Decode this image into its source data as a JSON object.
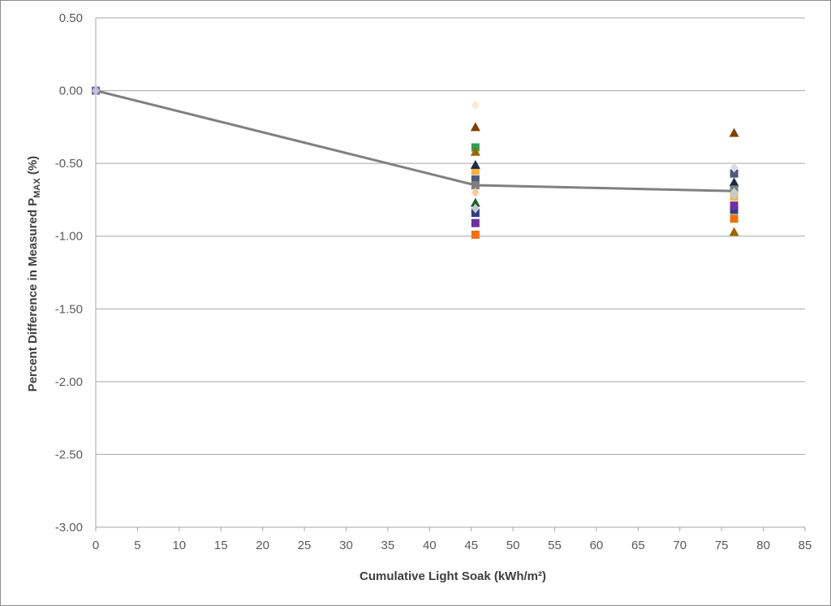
{
  "chart_data": {
    "type": "scatter",
    "xlabel": "Cumulative Light Soak (kWh/m²)",
    "ylabel": {
      "main": "Percent Difference in Measured P",
      "sub": "MAX",
      "suffix": " (%)"
    },
    "xlim": [
      0,
      85
    ],
    "ylim": [
      -3.0,
      0.5
    ],
    "x_ticks": [
      "0",
      "5",
      "10",
      "15",
      "20",
      "25",
      "30",
      "35",
      "40",
      "45",
      "50",
      "55",
      "60",
      "65",
      "70",
      "75",
      "80",
      "85"
    ],
    "y_ticks": [
      "0.50",
      "0.00",
      "-0.50",
      "-1.00",
      "-1.50",
      "-2.00",
      "-2.50",
      "-3.00"
    ],
    "grid": "horizontal",
    "legend": "none",
    "line_color": "#808080",
    "average_line": [
      {
        "x": 0,
        "y": 0
      },
      {
        "x": 45.5,
        "y": -0.65
      },
      {
        "x": 76.5,
        "y": -0.69
      }
    ],
    "points": [
      {
        "x": 0,
        "y": 0,
        "shape": "square",
        "color": "#8064a2"
      },
      {
        "x": 0,
        "y": 0,
        "shape": "diamond",
        "color": "#c0c0d8"
      },
      {
        "x": 45.5,
        "y": -0.1,
        "shape": "diamond",
        "color": "#fde9d0"
      },
      {
        "x": 45.5,
        "y": -0.25,
        "shape": "triangle",
        "color": "#7f3f00"
      },
      {
        "x": 45.5,
        "y": -0.39,
        "shape": "square",
        "color": "#2e9e4e"
      },
      {
        "x": 45.5,
        "y": -0.42,
        "shape": "triangle",
        "color": "#9c6500"
      },
      {
        "x": 45.5,
        "y": -0.55,
        "shape": "square",
        "color": "#f6b142"
      },
      {
        "x": 45.5,
        "y": -0.51,
        "shape": "triangle",
        "color": "#1f2a44"
      },
      {
        "x": 45.5,
        "y": -0.61,
        "shape": "square",
        "color": "#4f5b7a"
      },
      {
        "x": 45.5,
        "y": -0.65,
        "shape": "square",
        "color": "#7f7f7f"
      },
      {
        "x": 45.5,
        "y": -0.7,
        "shape": "diamond",
        "color": "#fbc99e"
      },
      {
        "x": 45.5,
        "y": -0.77,
        "shape": "triangle",
        "color": "#1e5c2e"
      },
      {
        "x": 45.5,
        "y": -0.84,
        "shape": "square",
        "color": "#2f3f86"
      },
      {
        "x": 45.5,
        "y": -0.81,
        "shape": "diamond",
        "color": "#c8c8c8"
      },
      {
        "x": 45.5,
        "y": -0.91,
        "shape": "square",
        "color": "#7030a0"
      },
      {
        "x": 45.5,
        "y": -0.99,
        "shape": "square",
        "color": "#f07010"
      },
      {
        "x": 76.5,
        "y": -0.29,
        "shape": "triangle",
        "color": "#7f3f00"
      },
      {
        "x": 76.5,
        "y": -0.57,
        "shape": "square",
        "color": "#4f5b7a"
      },
      {
        "x": 76.5,
        "y": -0.53,
        "shape": "diamond",
        "color": "#dcdce8"
      },
      {
        "x": 76.5,
        "y": -0.63,
        "shape": "triangle",
        "color": "#1f2a44"
      },
      {
        "x": 76.5,
        "y": -0.68,
        "shape": "square",
        "color": "#7f7f7f"
      },
      {
        "x": 76.5,
        "y": -0.73,
        "shape": "square",
        "color": "#f6b142"
      },
      {
        "x": 76.5,
        "y": -0.7,
        "shape": "diamond",
        "color": "#b8e0c8"
      },
      {
        "x": 76.5,
        "y": -0.72,
        "shape": "diamond",
        "color": "#c8c8c8"
      },
      {
        "x": 76.5,
        "y": -0.82,
        "shape": "square",
        "color": "#2f3f86"
      },
      {
        "x": 76.5,
        "y": -0.79,
        "shape": "square",
        "color": "#7030a0"
      },
      {
        "x": 76.5,
        "y": -0.88,
        "shape": "square",
        "color": "#f07010"
      },
      {
        "x": 76.5,
        "y": -0.97,
        "shape": "triangle",
        "color": "#9c6500"
      }
    ]
  }
}
